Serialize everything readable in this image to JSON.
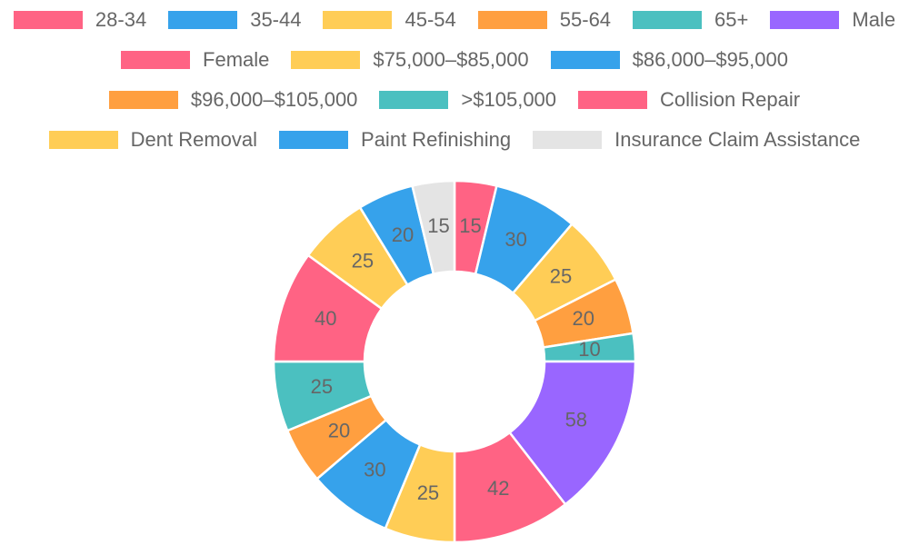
{
  "chart_data": {
    "type": "doughnut",
    "categories": [
      "28-34",
      "35-44",
      "45-54",
      "55-64",
      "65+",
      "Male",
      "Female",
      "$75,000–$85,000",
      "$86,000–$95,000",
      "$96,000–$105,000",
      ">$105,000",
      "Collision Repair",
      "Dent Removal",
      "Paint Refinishing",
      "Insurance Claim Assistance"
    ],
    "values": [
      15,
      30,
      25,
      20,
      10,
      58,
      42,
      25,
      30,
      20,
      25,
      40,
      25,
      20,
      15
    ],
    "colors": [
      "#ff6384",
      "#36a2eb",
      "#ffcd56",
      "#ff9f40",
      "#4bc0c0",
      "#9966ff",
      "#ff6384",
      "#ffcd56",
      "#36a2eb",
      "#ff9f40",
      "#4bc0c0",
      "#ff6384",
      "#ffcd56",
      "#36a2eb",
      "#e4e4e4"
    ],
    "legend": "top"
  }
}
